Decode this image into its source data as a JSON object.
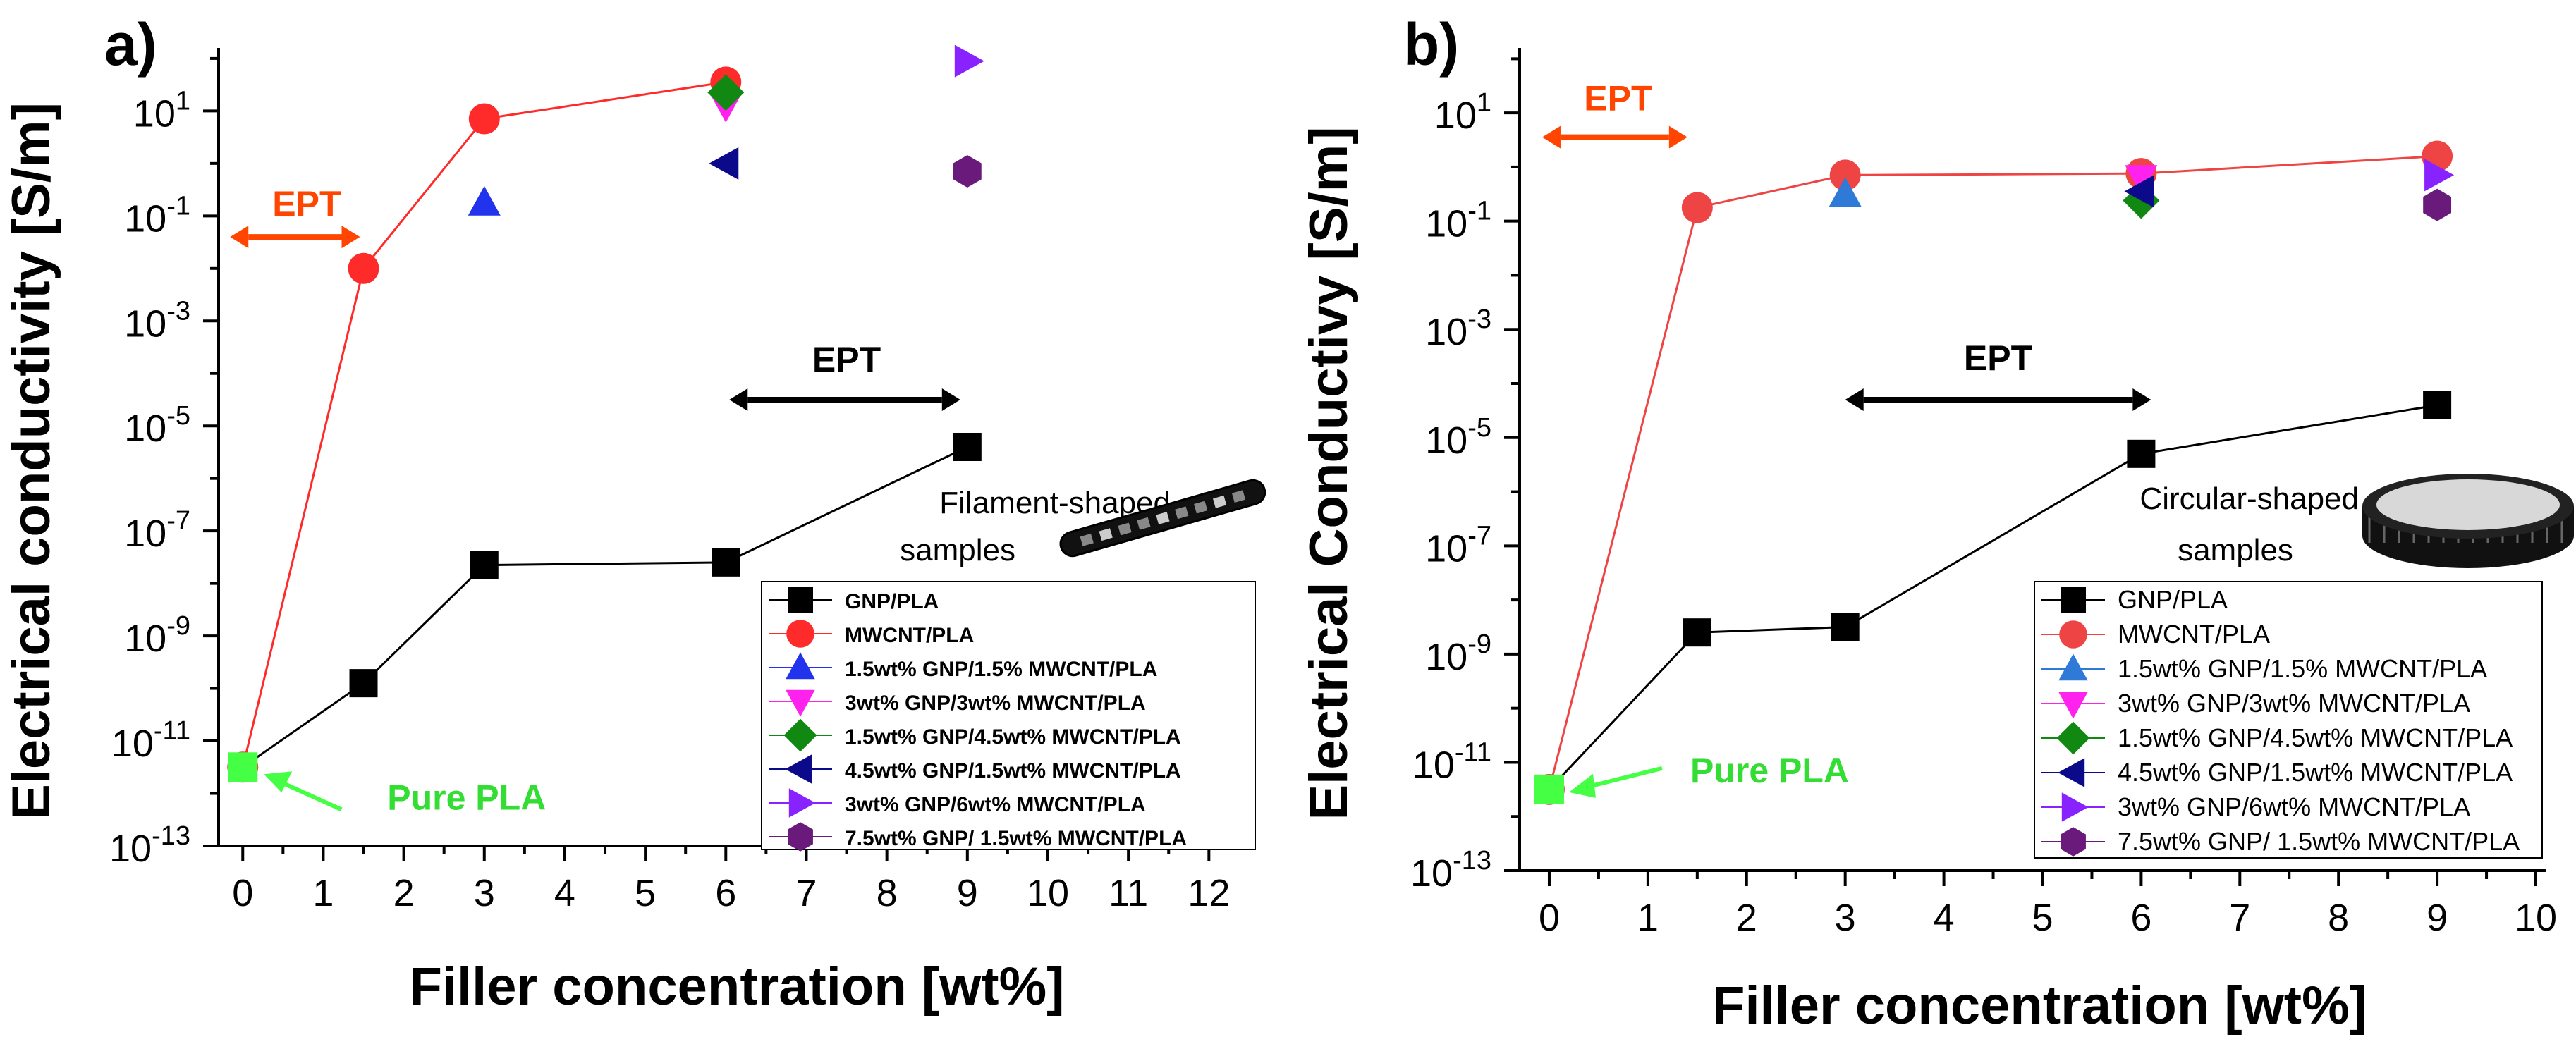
{
  "colors": {
    "gnp": "#000000",
    "mwcnt": "#ff2a2a",
    "mwcnt_b": "#ee4444",
    "blue": "#2233ee",
    "blue_b": "#2f7ad6",
    "magenta": "#ff22ee",
    "green": "#118811",
    "navy": "#0a0a8a",
    "violet": "#8822ff",
    "purple": "#6a1a7a",
    "pure_pla": "#44ff44",
    "ept_red": "#ff4500",
    "ept_black": "#000000"
  },
  "chart_data": [
    {
      "type": "scatter",
      "panel": "a)",
      "xlabel": "Filler concentration [wt%]",
      "ylabel": "Electrical conductivity [S/m]",
      "xlim": [
        -0.3,
        12.4
      ],
      "ylim_log10": [
        -13,
        2.2
      ],
      "x_ticks": [
        "0",
        "1",
        "2",
        "3",
        "4",
        "5",
        "6",
        "7",
        "8",
        "9",
        "10",
        "11",
        "12"
      ],
      "y_ticks_exp": [
        "-13",
        "-11",
        "-9",
        "-7",
        "-5",
        "-3",
        "-1",
        "1"
      ],
      "series": [
        {
          "name": "GNP/PLA",
          "marker": "square",
          "color_key": "gnp",
          "line": true,
          "points": [
            [
              0,
              -11.5
            ],
            [
              1.5,
              -9.9
            ],
            [
              3,
              -7.65
            ],
            [
              6,
              -7.6
            ],
            [
              9,
              -5.4
            ]
          ]
        },
        {
          "name": "MWCNT/PLA",
          "marker": "circle",
          "color_key": "mwcnt",
          "line": true,
          "points": [
            [
              0,
              -11.5
            ],
            [
              1.5,
              -2.0
            ],
            [
              3,
              0.85
            ],
            [
              6,
              1.55
            ]
          ]
        },
        {
          "name": "1.5wt% GNP/1.5% MWCNT/PLA",
          "marker": "triangle-up",
          "color_key": "blue",
          "points": [
            [
              3,
              -0.75
            ]
          ]
        },
        {
          "name": "3wt% GNP/3wt% MWCNT/PLA",
          "marker": "triangle-down",
          "color_key": "magenta",
          "points": [
            [
              6,
              1.1
            ]
          ]
        },
        {
          "name": "1.5wt% GNP/4.5wt% MWCNT/PLA",
          "marker": "diamond",
          "color_key": "green",
          "points": [
            [
              6,
              1.35
            ]
          ]
        },
        {
          "name": "4.5wt% GNP/1.5wt% MWCNT/PLA",
          "marker": "triangle-left",
          "color_key": "navy",
          "points": [
            [
              6,
              0.0
            ]
          ]
        },
        {
          "name": "3wt% GNP/6wt% MWCNT/PLA",
          "marker": "triangle-right",
          "color_key": "violet",
          "points": [
            [
              9,
              1.95
            ]
          ]
        },
        {
          "name": "7.5wt% GNP/ 1.5wt% MWCNT/PLA",
          "marker": "hexagon",
          "color_key": "purple",
          "points": [
            [
              9,
              -0.15
            ]
          ]
        }
      ],
      "pure_pla_point": [
        0,
        -11.5
      ],
      "annotations": {
        "ept_top": "EPT",
        "ept_top_range": [
          0,
          1.5
        ],
        "ept_bottom": "EPT",
        "ept_bottom_range": [
          6,
          9
        ],
        "pure_pla": "Pure PLA",
        "sample_line1": "Filament-shaped",
        "sample_line2": "samples"
      }
    },
    {
      "type": "scatter",
      "panel": "b)",
      "xlabel": "Filler concentration [wt%]",
      "ylabel": "Electrical Conductivy [S/m]",
      "xlim": [
        -0.3,
        10.1
      ],
      "ylim_log10": [
        -13,
        2.2
      ],
      "x_ticks": [
        "0",
        "1",
        "2",
        "3",
        "4",
        "5",
        "6",
        "7",
        "8",
        "9",
        "10"
      ],
      "y_ticks_exp": [
        "-13",
        "-11",
        "-9",
        "-7",
        "-5",
        "-3",
        "-1",
        "1"
      ],
      "series": [
        {
          "name": "GNP/PLA",
          "marker": "square",
          "color_key": "gnp",
          "line": true,
          "points": [
            [
              0,
              -11.5
            ],
            [
              1.5,
              -8.6
            ],
            [
              3,
              -8.5
            ],
            [
              6,
              -5.3
            ],
            [
              9,
              -4.4
            ]
          ]
        },
        {
          "name": "MWCNT/PLA",
          "marker": "circle",
          "color_key": "mwcnt_b",
          "line": true,
          "points": [
            [
              0,
              -11.5
            ],
            [
              1.5,
              -0.75
            ],
            [
              3,
              -0.15
            ],
            [
              6,
              -0.12
            ],
            [
              9,
              0.2
            ]
          ]
        },
        {
          "name": "1.5wt% GNP/1.5% MWCNT/PLA",
          "marker": "triangle-up",
          "color_key": "blue_b",
          "points": [
            [
              3,
              -0.5
            ]
          ]
        },
        {
          "name": "3wt% GNP/3wt% MWCNT/PLA",
          "marker": "triangle-down",
          "color_key": "magenta",
          "points": [
            [
              6,
              -0.2
            ]
          ]
        },
        {
          "name": "1.5wt% GNP/4.5wt% MWCNT/PLA",
          "marker": "diamond",
          "color_key": "green",
          "points": [
            [
              6,
              -0.62
            ]
          ]
        },
        {
          "name": "4.5wt% GNP/1.5wt% MWCNT/PLA",
          "marker": "triangle-left",
          "color_key": "navy",
          "points": [
            [
              6,
              -0.45
            ]
          ]
        },
        {
          "name": "3wt% GNP/6wt% MWCNT/PLA",
          "marker": "triangle-right",
          "color_key": "violet",
          "points": [
            [
              9,
              -0.15
            ]
          ]
        },
        {
          "name": "7.5wt% GNP/ 1.5wt% MWCNT/PLA",
          "marker": "hexagon",
          "color_key": "purple",
          "points": [
            [
              9,
              -0.7
            ]
          ]
        }
      ],
      "pure_pla_point": [
        0,
        -11.5
      ],
      "annotations": {
        "ept_top": "EPT",
        "ept_top_range": [
          0,
          1.4
        ],
        "ept_bottom": "EPT",
        "ept_bottom_range": [
          3,
          6.1
        ],
        "pure_pla": "Pure PLA",
        "sample_line1": "Circular-shaped",
        "sample_line2": "samples"
      }
    }
  ]
}
